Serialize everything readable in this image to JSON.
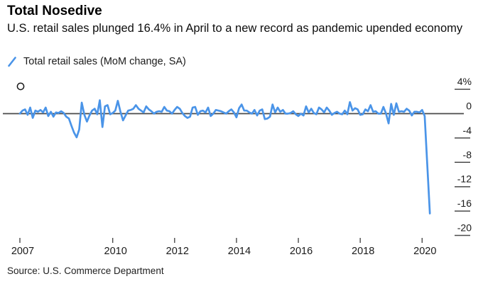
{
  "header": {
    "title": "Total Nosedive",
    "subtitle": "U.S. retail sales plunged 16.4% in April to a new record as pandemic upended economy"
  },
  "legend": {
    "label": "Total retail sales (MoM change, SA)",
    "color": "#4A94E8"
  },
  "source": "Source: U.S. Commerce Department",
  "chart_data": {
    "type": "line",
    "title": "Total Nosedive",
    "subtitle": "U.S. retail sales plunged 16.4% in April to a new record as pandemic upended economy",
    "legend": [
      "Total retail sales (MoM change, SA)"
    ],
    "x_start": "2007-01",
    "x_end": "2020-04",
    "frequency": "monthly",
    "series": [
      {
        "name": "Total retail sales (MoM change, SA)",
        "values": [
          0.0,
          0.5,
          0.7,
          -0.2,
          1.0,
          -0.7,
          0.5,
          0.3,
          0.6,
          0.2,
          1.0,
          -0.4,
          0.3,
          -0.5,
          0.2,
          0.1,
          0.4,
          0.1,
          -0.5,
          -0.8,
          -2.0,
          -3.1,
          -3.9,
          -2.6,
          1.8,
          -0.2,
          -1.3,
          -0.3,
          0.5,
          0.8,
          -0.1,
          2.2,
          -2.2,
          1.2,
          1.4,
          -0.1,
          0.1,
          0.5,
          2.1,
          0.3,
          -1.1,
          -0.3,
          0.5,
          0.6,
          0.8,
          1.4,
          0.8,
          0.5,
          0.2,
          1.2,
          0.7,
          0.4,
          0.0,
          0.3,
          0.4,
          0.3,
          1.1,
          0.5,
          0.4,
          0.0,
          0.6,
          1.1,
          0.8,
          0.1,
          -0.4,
          -0.7,
          -0.5,
          1.0,
          1.1,
          -0.2,
          0.4,
          0.5,
          0.2,
          1.0,
          -0.4,
          0.0,
          0.6,
          0.5,
          0.4,
          0.2,
          0.0,
          0.4,
          0.7,
          0.2,
          -0.6,
          0.9,
          1.5,
          0.5,
          0.5,
          0.2,
          0.0,
          0.6,
          -0.3,
          0.5,
          0.7,
          -0.9,
          -0.8,
          -0.5,
          1.5,
          0.2,
          1.0,
          0.3,
          0.6,
          0.0,
          0.0,
          0.1,
          0.4,
          -0.1,
          -0.4,
          0.0,
          -0.3,
          1.2,
          0.2,
          0.8,
          0.1,
          -0.1,
          1.0,
          0.7,
          0.2,
          1.0,
          0.5,
          -0.2,
          0.1,
          0.3,
          0.0,
          -0.1,
          0.5,
          -0.1,
          1.9,
          0.5,
          0.9,
          0.7,
          -0.2,
          -0.1,
          0.7,
          0.4,
          1.4,
          0.3,
          0.4,
          0.0,
          0.0,
          1.1,
          0.0,
          -1.6,
          1.6,
          -0.2,
          1.7,
          0.3,
          0.4,
          0.3,
          0.8,
          0.5,
          -0.3,
          0.3,
          0.3,
          0.2,
          0.6,
          -0.4,
          -8.3,
          -16.4
        ]
      }
    ],
    "y_axis": {
      "unit": "%",
      "side": "right",
      "range": [
        -21,
        5
      ],
      "ticks": [
        {
          "label": "4%",
          "value": 4
        },
        {
          "label": "0",
          "value": 0
        },
        {
          "label": "-4",
          "value": -4
        },
        {
          "label": "-8",
          "value": -8
        },
        {
          "label": "-12",
          "value": -12
        },
        {
          "label": "-16",
          "value": -16
        },
        {
          "label": "-20",
          "value": -20
        }
      ]
    },
    "x_axis": {
      "tick_years": [
        "2007",
        "2010",
        "2012",
        "2014",
        "2016",
        "2018",
        "2020"
      ]
    },
    "line_color": "#4A94E8",
    "axis_color": "#4a4a4a",
    "label_color": "#1a1a1a",
    "zero_line": true,
    "grid": false,
    "annotation": "small open ring marker near top-left of plot area"
  }
}
